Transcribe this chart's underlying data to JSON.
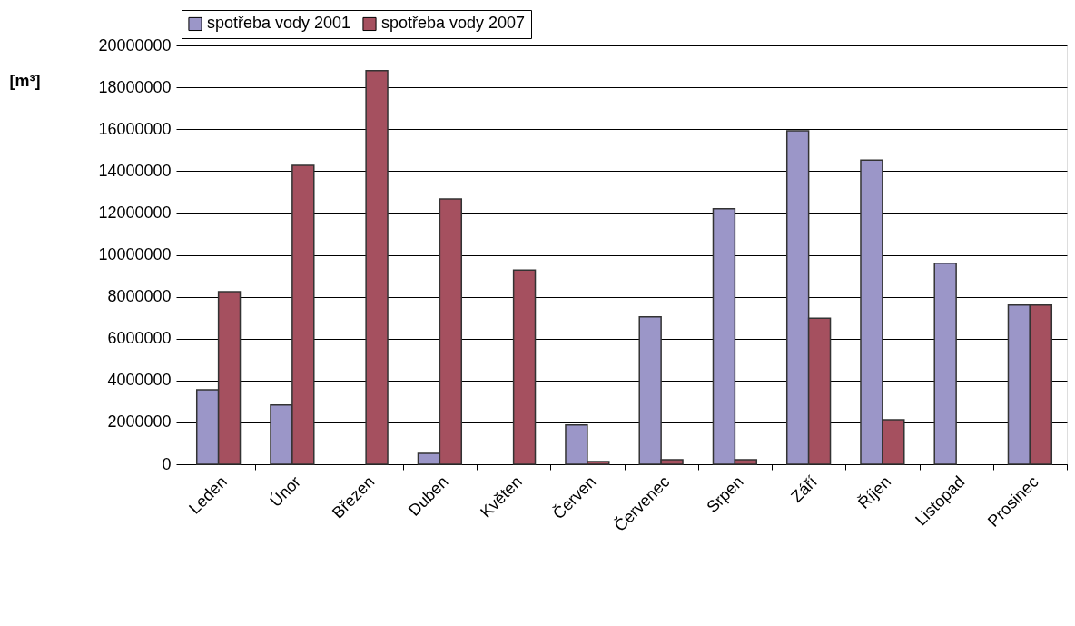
{
  "chart_data": {
    "type": "bar",
    "ylabel": "[m³]",
    "categories": [
      "Leden",
      "Únor",
      "Březen",
      "Duben",
      "Květen",
      "Červen",
      "Červenec",
      "Srpen",
      "Září",
      "Říjen",
      "Listopad",
      "Prosinec"
    ],
    "series": [
      {
        "name": "spotřeba vody 2001",
        "color": "#9b96c8",
        "values": [
          3560000,
          2830000,
          null,
          520000,
          null,
          1880000,
          7040000,
          12200000,
          15920000,
          14520000,
          9600000,
          7600000
        ]
      },
      {
        "name": "spotřeba vody 2007",
        "color": "#a5505f",
        "values": [
          8240000,
          14270000,
          18800000,
          12670000,
          9270000,
          130000,
          220000,
          220000,
          6970000,
          2130000,
          null,
          7600000
        ]
      }
    ],
    "ylim": [
      0,
      20000000
    ],
    "yticks": [
      0,
      2000000,
      4000000,
      6000000,
      8000000,
      10000000,
      12000000,
      14000000,
      16000000,
      18000000,
      20000000
    ],
    "grid": "y",
    "legend": "top"
  }
}
